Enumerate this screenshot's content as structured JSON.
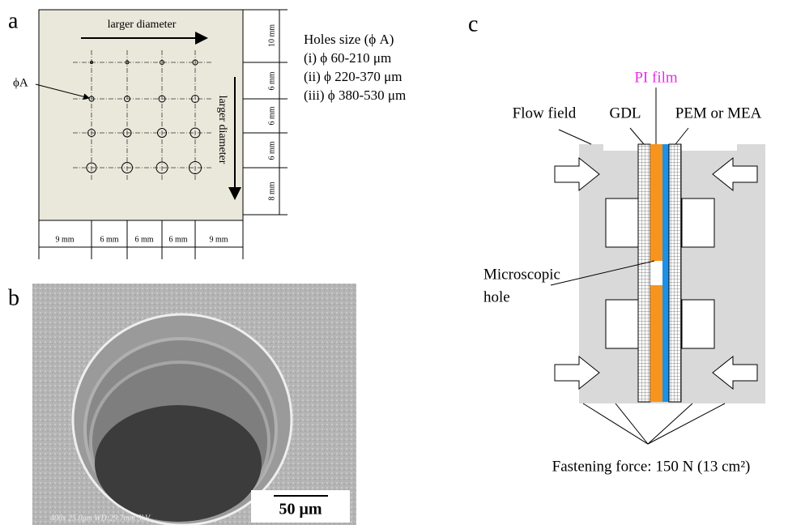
{
  "panel_a": {
    "label": "a",
    "top_arrow": "larger  diameter",
    "side_arrow": "larger  diameter",
    "hole_label": "ϕA",
    "dims_right": [
      "10 mm",
      "6 mm",
      "6 mm",
      "6 mm",
      "8 mm"
    ],
    "dims_bottom": [
      "9 mm",
      "6 mm",
      "6 mm",
      "6 mm",
      "9 mm"
    ],
    "legend_title": "Holes size (ϕ A)",
    "legend_items": [
      "(i) ϕ 60-210 μm",
      "(ii) ϕ 220-370 μm",
      "(iii) ϕ 380-530 μm"
    ]
  },
  "panel_b": {
    "label": "b",
    "scale_bar": "50 μm",
    "sem_caption": "400x 25.0μm WD:29.7mm 5kV"
  },
  "panel_c": {
    "label": "c",
    "pi_film": "PI film",
    "flow_field": "Flow field",
    "gdl": "GDL",
    "pem": "PEM or MEA",
    "hole_lines": [
      "Microscopic",
      "hole"
    ],
    "force": "Fastening force: 150 N (13 cm²)"
  }
}
